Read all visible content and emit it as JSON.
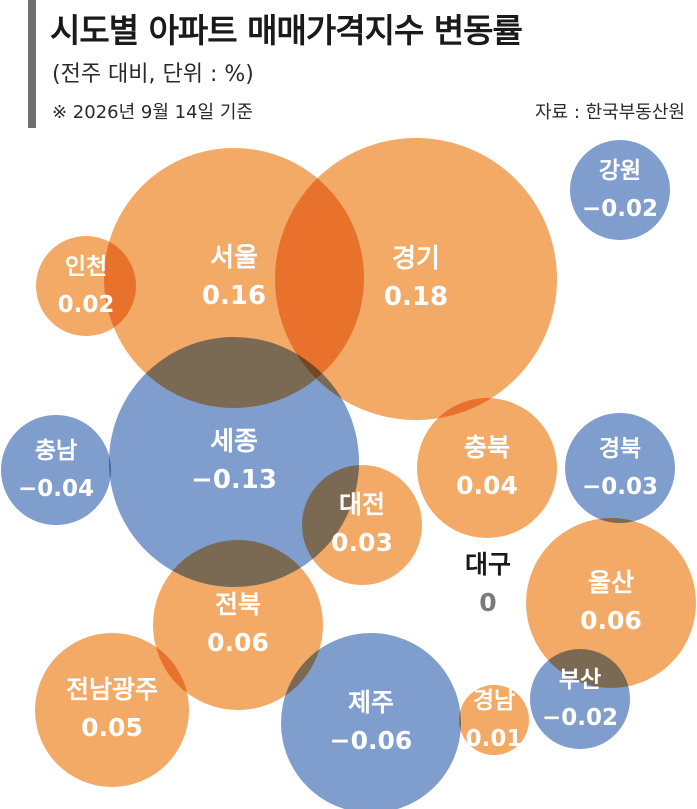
{
  "chart_data": {
    "type": "bubble",
    "title": "시도별 아파트 매매가격지수 변동률",
    "subtitle": "(전주 대비, 단위 : %)",
    "note": "※ 2026년 9월 14일 기준",
    "source": "자료 : 한국부동산원",
    "colors": {
      "positive": "#f0923c",
      "negative": "#5b82bf",
      "zero": "#7a7a7a"
    },
    "points": [
      {
        "name": "서울",
        "value": 0.16
      },
      {
        "name": "경기",
        "value": 0.18
      },
      {
        "name": "인천",
        "value": 0.02
      },
      {
        "name": "강원",
        "value": -0.02
      },
      {
        "name": "세종",
        "value": -0.13
      },
      {
        "name": "충남",
        "value": -0.04
      },
      {
        "name": "충북",
        "value": 0.04
      },
      {
        "name": "경북",
        "value": -0.03
      },
      {
        "name": "대전",
        "value": 0.03
      },
      {
        "name": "대구",
        "value": 0
      },
      {
        "name": "울산",
        "value": 0.06
      },
      {
        "name": "전북",
        "value": 0.06
      },
      {
        "name": "경남",
        "value": 0.01
      },
      {
        "name": "부산",
        "value": -0.02
      },
      {
        "name": "전남광주",
        "value": 0.05
      },
      {
        "name": "제주",
        "value": -0.06
      }
    ]
  }
}
